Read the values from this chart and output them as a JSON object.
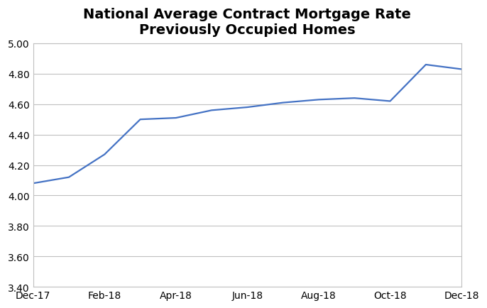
{
  "title": "National Average Contract Mortgage Rate\nPreviously Occupied Homes",
  "x_labels": [
    "Dec-17",
    "Feb-18",
    "Apr-18",
    "Jun-18",
    "Aug-18",
    "Oct-18",
    "Dec-18"
  ],
  "x_values": [
    0,
    2,
    4,
    6,
    8,
    10,
    12
  ],
  "y_values_x": [
    0,
    1,
    2,
    3,
    4,
    5,
    6,
    7,
    8,
    9,
    10,
    11,
    12
  ],
  "y_values": [
    4.08,
    4.12,
    4.27,
    4.5,
    4.51,
    4.56,
    4.58,
    4.61,
    4.63,
    4.64,
    4.62,
    4.86,
    4.83
  ],
  "line_color": "#4472C4",
  "line_width": 1.6,
  "ylim": [
    3.4,
    5.0
  ],
  "yticks": [
    3.4,
    3.6,
    3.8,
    4.0,
    4.2,
    4.4,
    4.6,
    4.8,
    5.0
  ],
  "grid_color": "#C0C0C0",
  "background_color": "#FFFFFF",
  "title_fontsize": 14,
  "tick_fontsize": 10,
  "spine_color": "#C0C0C0"
}
